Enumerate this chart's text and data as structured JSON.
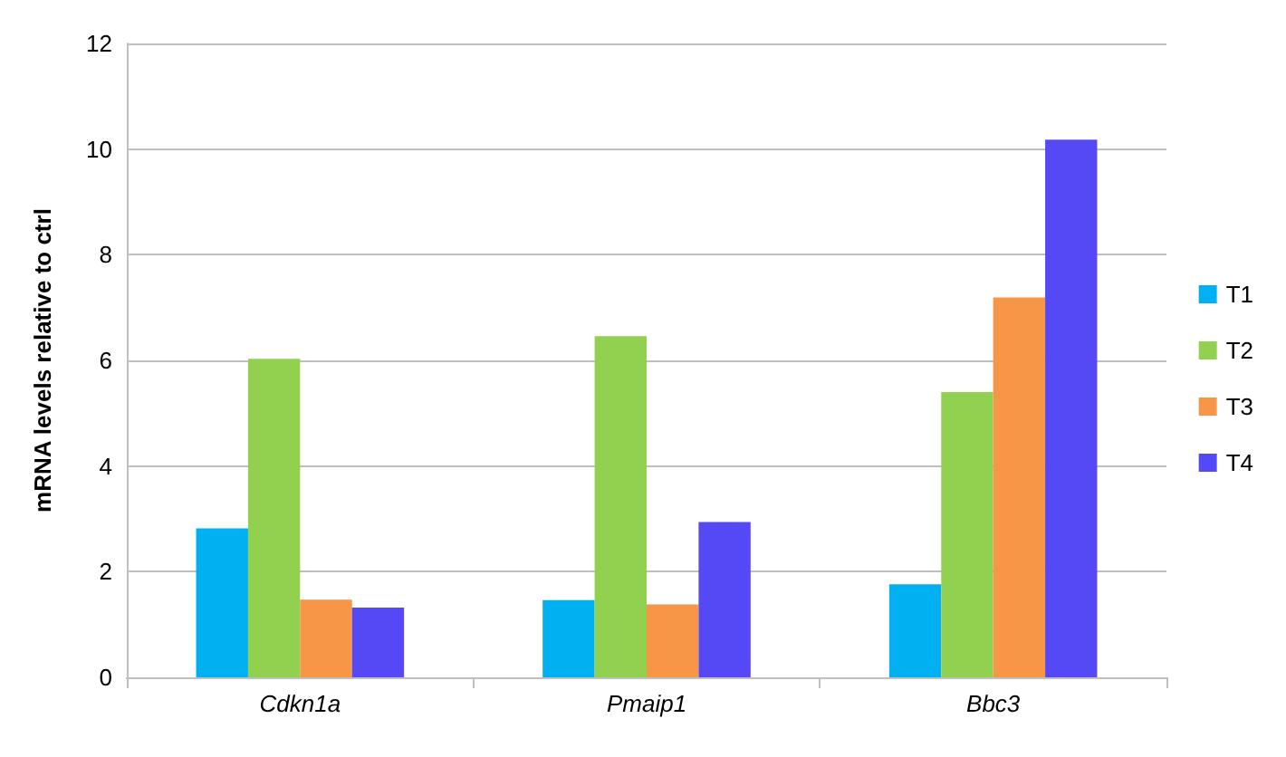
{
  "chart_data": {
    "type": "bar",
    "ylabel": "mRNA levels relative to ctrl",
    "categories": [
      "Cdkn1a",
      "Pmaip1",
      "Bbc3"
    ],
    "series": [
      {
        "name": "T1",
        "color": "#00b0f0",
        "values": [
          2.82,
          1.46,
          1.76
        ]
      },
      {
        "name": "T2",
        "color": "#92d050",
        "values": [
          6.03,
          6.46,
          5.4
        ]
      },
      {
        "name": "T3",
        "color": "#f79646",
        "values": [
          1.47,
          1.38,
          7.19
        ]
      },
      {
        "name": "T4",
        "color": "#5549f5",
        "values": [
          1.32,
          2.94,
          10.18
        ]
      }
    ],
    "ylim": [
      0,
      12
    ],
    "yticks": [
      0,
      2,
      4,
      6,
      8,
      10,
      12
    ],
    "grid": "y",
    "legend": "right"
  }
}
